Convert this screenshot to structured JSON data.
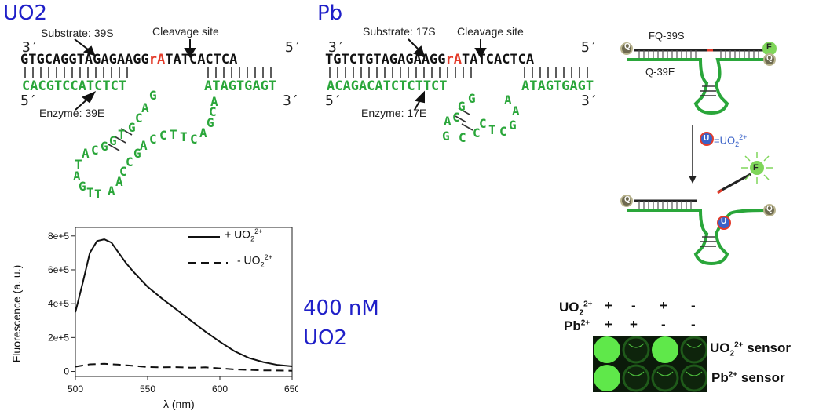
{
  "panels": {
    "uo2": {
      "title": "UO2",
      "substrate_label": "Substrate: 39S",
      "cleavage_label": "Cleavage site",
      "enzyme_label": "Enzyme: 39E",
      "prime_3_top": "3′",
      "prime_5_top": "5′",
      "prime_5_bottom": "5′",
      "prime_3_bottom": "3′",
      "top_seq_a": "GTGCAGGTAGAGAAGG",
      "top_seq_cleave": "rA",
      "top_seq_b": "TATCACTCA",
      "bottom_seq_a": "CACGTCCATCTCT",
      "bottom_seq_b": "ATAGTGAGT",
      "loop_letters": [
        "G",
        "A",
        "C",
        "G",
        "T",
        "G",
        "G",
        "C",
        "A",
        "T",
        "A",
        "G",
        "T",
        "T",
        "A",
        "A",
        "C",
        "C",
        "G",
        "A",
        "C",
        "C",
        "T",
        "T",
        "C",
        "A",
        "G",
        "C",
        "A",
        "G"
      ]
    },
    "pb": {
      "title": "Pb",
      "substrate_label": "Substrate: 17S",
      "cleavage_label": "Cleavage site",
      "enzyme_label": "Enzyme: 17E",
      "prime_3_top": "3′",
      "prime_5_top": "5′",
      "prime_5_bottom": "5′",
      "prime_3_bottom": "3′",
      "top_seq_a": "TGTCTGTAGAGAAGG",
      "top_seq_cleave": "rA",
      "top_seq_b": "TATCACTCA",
      "bottom_seq_a": "ACAGACATCTCTTCT",
      "bottom_seq_b": "ATAGTGAGT",
      "loop_letters": [
        "A",
        "G",
        "C",
        "C",
        "G",
        "G",
        "C",
        "C",
        "T",
        "C",
        "G",
        "A",
        "A",
        "G"
      ]
    },
    "sensor": {
      "top_strand_label": "FQ-39S",
      "bottom_strand_label": "Q-39E",
      "fluor_letter": "F",
      "quench_letter": "Q",
      "uranyl_letter": "U",
      "legend_text": "=UO",
      "legend_sub": "2",
      "legend_sup": "2+"
    },
    "concentration": {
      "line1": "400 nM",
      "line2": "UO2"
    },
    "plate": {
      "row1_ion": "UO",
      "row1_sub": "2",
      "row1_sup": "2+",
      "row2_ion": "Pb",
      "row2_sup": "2+",
      "row1_signs": [
        "+",
        "-",
        "+",
        "-"
      ],
      "row2_signs": [
        "+",
        "+",
        "-",
        "-"
      ],
      "sensor1_ion": "UO",
      "sensor1_sub": "2",
      "sensor1_sup": "2+",
      "sensor1_word": "sensor",
      "sensor2_ion": "Pb",
      "sensor2_sup": "2+",
      "sensor2_word": "sensor",
      "well_fluorescent": [
        [
          true,
          false,
          true,
          false
        ],
        [
          true,
          false,
          false,
          false
        ]
      ],
      "colors": {
        "bright": "#5fe84a",
        "dim": "#1f5a1a"
      }
    }
  },
  "chart_data": {
    "type": "line",
    "xlabel": "λ (nm)",
    "ylabel": "Fluorescence (a. u.)",
    "xlim": [
      500,
      650
    ],
    "ylim": [
      -30000,
      850000
    ],
    "xticks": [
      "500",
      "550",
      "600",
      "650"
    ],
    "yticks": [
      "0",
      "2e+5",
      "4e+5",
      "6e+5",
      "8e+5"
    ],
    "legend_position": "top-right",
    "series": [
      {
        "name": "+ UO2 2+",
        "legend_main": "+ UO",
        "legend_sub": "2",
        "legend_sup": "2+",
        "style": "solid",
        "x": [
          500,
          505,
          510,
          515,
          520,
          525,
          530,
          535,
          540,
          545,
          550,
          560,
          570,
          580,
          590,
          600,
          610,
          620,
          630,
          640,
          650
        ],
        "y": [
          350000,
          520000,
          700000,
          770000,
          780000,
          760000,
          700000,
          640000,
          590000,
          545000,
          500000,
          430000,
          365000,
          300000,
          235000,
          175000,
          120000,
          80000,
          55000,
          38000,
          30000
        ]
      },
      {
        "name": "- UO2 2+",
        "legend_main": "- UO",
        "legend_sub": "2",
        "legend_sup": "2+",
        "style": "dashed",
        "x": [
          500,
          510,
          520,
          530,
          540,
          550,
          560,
          570,
          580,
          590,
          600,
          610,
          620,
          630,
          640,
          650
        ],
        "y": [
          28000,
          42000,
          45000,
          40000,
          33000,
          26000,
          24000,
          25000,
          22000,
          24000,
          18000,
          12000,
          9000,
          6000,
          5000,
          4000
        ]
      }
    ]
  }
}
